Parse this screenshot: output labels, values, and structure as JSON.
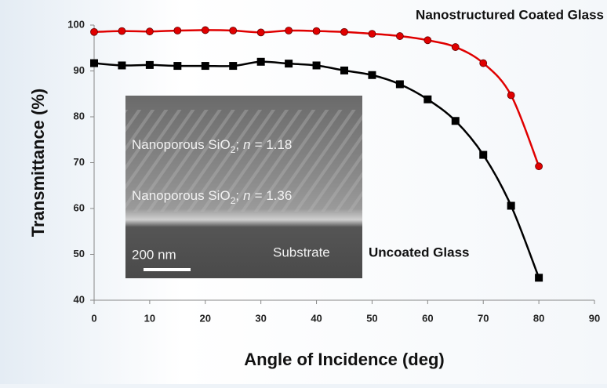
{
  "chart_data": {
    "type": "line",
    "xlabel": "Angle of Incidence (deg)",
    "ylabel": "Transmittance  (%)",
    "x": [
      0,
      5,
      10,
      15,
      20,
      25,
      30,
      35,
      40,
      45,
      50,
      55,
      60,
      65,
      70,
      75,
      80
    ],
    "series": [
      {
        "name": "Nanostructured Coated Glass",
        "color": "#e00000",
        "marker": "circle",
        "values": [
          98.5,
          98.7,
          98.6,
          98.8,
          98.9,
          98.8,
          98.4,
          98.8,
          98.7,
          98.5,
          98.1,
          97.6,
          96.7,
          95.2,
          91.7,
          84.7,
          69.2
        ]
      },
      {
        "name": "Uncoated Glass",
        "color": "#000000",
        "marker": "square",
        "values": [
          91.7,
          91.2,
          91.3,
          91.1,
          91.1,
          91.1,
          92.0,
          91.6,
          91.2,
          90.1,
          89.1,
          87.1,
          83.8,
          79.1,
          71.7,
          60.6,
          44.9
        ]
      }
    ],
    "xlim": [
      0,
      90
    ],
    "xticks": [
      0,
      10,
      20,
      30,
      40,
      50,
      60,
      70,
      80,
      90
    ],
    "ylim": [
      40,
      100
    ],
    "yticks": [
      40,
      50,
      60,
      70,
      80,
      90,
      100
    ],
    "inset": {
      "layers": [
        [
          "Nanoporous SiO",
          "2",
          ";",
          "n",
          "= 1.18"
        ],
        [
          "Nanoporous SiO",
          "2",
          ";",
          "n",
          "= 1.36"
        ]
      ],
      "scale_bar": "200 nm",
      "substrate": "Substrate"
    }
  }
}
